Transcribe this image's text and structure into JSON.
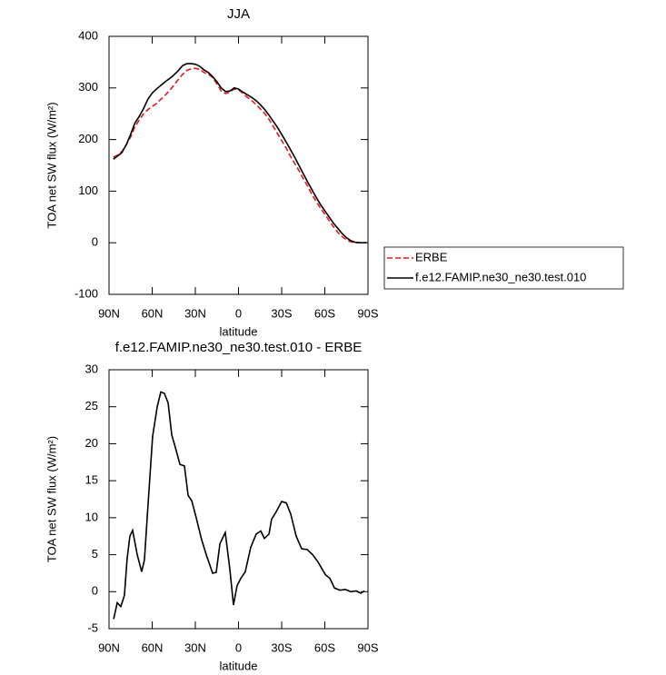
{
  "chart_data": [
    {
      "type": "line",
      "title": "JJA",
      "xlabel": "latitude",
      "ylabel": "TOA net SW flux (W/m²)",
      "x": [
        87,
        84,
        81,
        78,
        75,
        72,
        69,
        66,
        63,
        60,
        57,
        54,
        51,
        48,
        45,
        42,
        39,
        36,
        33,
        30,
        27,
        24,
        21,
        18,
        15,
        12,
        9,
        6,
        3,
        0,
        -3,
        -6,
        -9,
        -12,
        -15,
        -18,
        -21,
        -24,
        -27,
        -30,
        -33,
        -36,
        -39,
        -42,
        -45,
        -48,
        -51,
        -54,
        -57,
        -60,
        -63,
        -66,
        -69,
        -72,
        -75,
        -78,
        -81,
        -84,
        -87,
        -89
      ],
      "series": [
        {
          "name": "ERBE",
          "color": "#e8191e",
          "line_style": "dashed",
          "values": [
            166,
            170,
            177,
            190,
            205,
            225,
            238,
            250,
            258,
            264,
            270,
            278,
            286,
            295,
            305,
            316,
            326,
            334,
            337,
            338,
            336,
            330,
            327,
            320,
            308,
            294,
            289,
            292,
            298,
            296,
            290,
            282,
            276,
            268,
            260,
            251,
            240,
            226,
            212,
            198,
            184,
            168,
            154,
            140,
            124,
            110,
            94,
            80,
            67,
            55,
            43,
            31,
            20,
            12,
            6,
            2,
            0,
            0,
            0,
            0
          ]
        },
        {
          "name": "f.e12.FAMIP.ne30_ne30.test.010",
          "color": "#000000",
          "line_style": "solid",
          "values": [
            162,
            168,
            175,
            190,
            210,
            232,
            245,
            260,
            278,
            290,
            298,
            305,
            312,
            318,
            325,
            333,
            343,
            347,
            347,
            346,
            342,
            335,
            330,
            322,
            312,
            300,
            293,
            294,
            300,
            298,
            292,
            287,
            282,
            276,
            268,
            259,
            248,
            236,
            224,
            210,
            196,
            181,
            166,
            150,
            134,
            118,
            103,
            88,
            74,
            62,
            50,
            38,
            28,
            18,
            10,
            4,
            1,
            0,
            0,
            0
          ]
        }
      ],
      "xlim": [
        90,
        -90
      ],
      "xticks": [
        {
          "value": 90,
          "label": "90N"
        },
        {
          "value": 60,
          "label": "60N"
        },
        {
          "value": 30,
          "label": "30N"
        },
        0,
        {
          "value": -30,
          "label": "30S"
        },
        {
          "value": -60,
          "label": "60S"
        },
        {
          "value": -90,
          "label": "90S"
        }
      ],
      "ylim": [
        -100,
        400
      ],
      "yticks": [
        -100,
        0,
        100,
        200,
        300,
        400
      ],
      "legend": "right"
    },
    {
      "type": "line",
      "title": "f.e12.FAMIP.ne30_ne30.test.010 - ERBE",
      "xlabel": "latitude",
      "ylabel": "TOA net SW flux (W/m²)",
      "x": [
        86.8,
        84.3,
        81.8,
        79.3,
        77.4,
        75.5,
        73.6,
        70.4,
        67.3,
        65.4,
        62.8,
        59.7,
        56.5,
        54,
        51.5,
        48.9,
        46.4,
        43.9,
        40.7,
        37.6,
        35,
        32.5,
        29.4,
        25.6,
        22.4,
        18,
        15.5,
        12.9,
        9.2,
        6,
        3.5,
        1,
        -1.6,
        -4.7,
        -8.5,
        -12.3,
        -15.5,
        -18,
        -21.2,
        -23,
        -26.2,
        -30,
        -33.2,
        -36.3,
        -40.1,
        -43.9,
        -47.7,
        -51.5,
        -55.3,
        -60.4,
        -63.5,
        -66.7,
        -70.5,
        -74.2,
        -78,
        -81.8,
        -85,
        -87.5
      ],
      "series": [
        {
          "name": "f.e12.FAMIP.ne30_ne30.test.010 - ERBE",
          "color": "#000000",
          "line_style": "solid",
          "values": [
            -3.7,
            -1.5,
            -2.0,
            -0.5,
            4.5,
            7.5,
            8.3,
            5,
            2.7,
            4.3,
            12,
            21,
            25,
            27,
            26.8,
            25.5,
            21.2,
            19.5,
            17.2,
            17.0,
            13,
            12.3,
            10,
            7,
            5,
            2.5,
            2.6,
            6.5,
            8.0,
            3,
            -1.8,
            0.8,
            1.8,
            2.7,
            6.0,
            7.8,
            8.2,
            7.2,
            7.8,
            9.8,
            10.8,
            12.2,
            12.0,
            10.5,
            7.5,
            5.8,
            5.7,
            5.0,
            4.0,
            2.3,
            1.8,
            0.5,
            0.2,
            0.3,
            0,
            0.1,
            -0.2,
            0.1
          ]
        }
      ],
      "xlim": [
        90,
        -90
      ],
      "xticks": [
        {
          "value": 90,
          "label": "90N"
        },
        {
          "value": 60,
          "label": "60N"
        },
        {
          "value": 30,
          "label": "30N"
        },
        0,
        {
          "value": -30,
          "label": "30S"
        },
        {
          "value": -60,
          "label": "60S"
        },
        {
          "value": -90,
          "label": "90S"
        }
      ],
      "ylim": [
        -5,
        30
      ],
      "yticks": [
        -5,
        0,
        5,
        10,
        15,
        20,
        25,
        30
      ]
    }
  ]
}
